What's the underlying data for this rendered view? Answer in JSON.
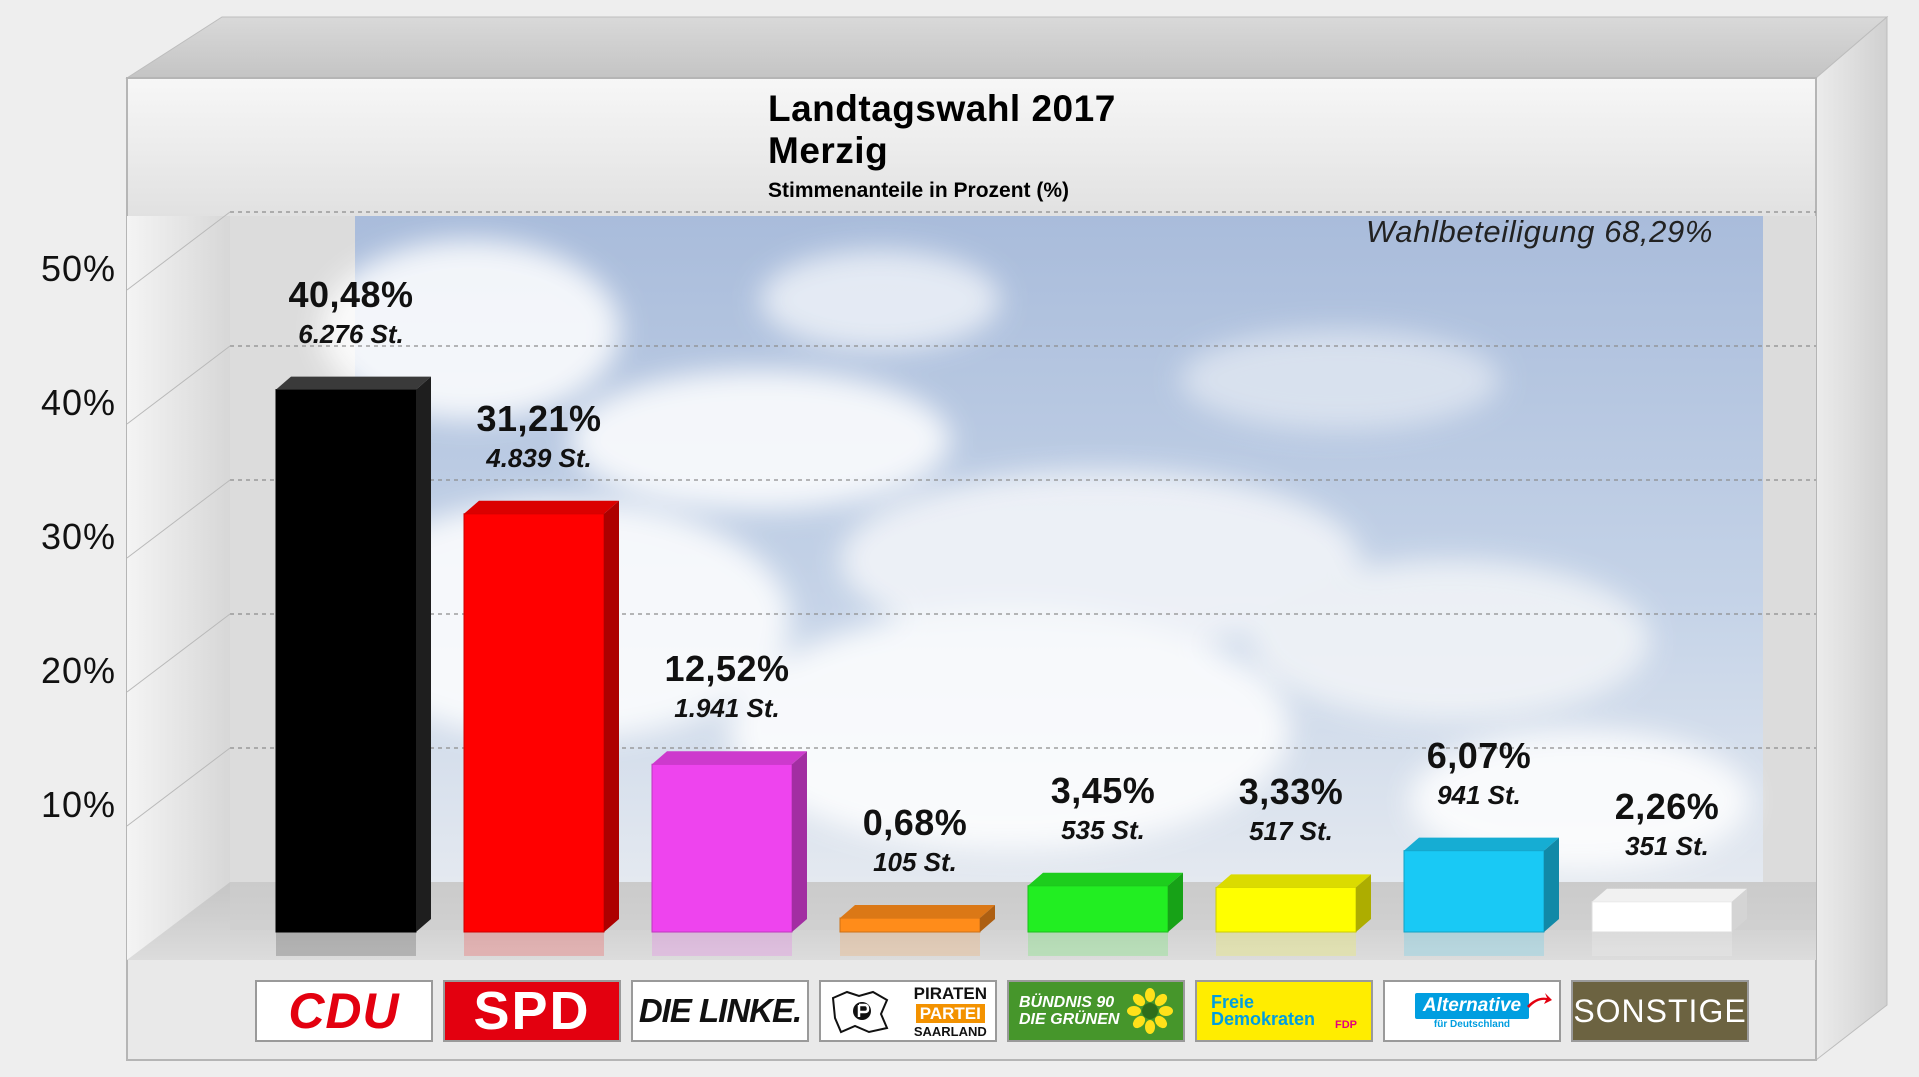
{
  "chart_data": {
    "type": "bar",
    "title": "Landtagswahl 2017",
    "subtitle_line2": "Merzig",
    "subtitle": "Stimmenanteile in Prozent (%)",
    "annotation": "Wahlbeteiligung 68,29%",
    "categories": [
      "CDU",
      "SPD",
      "DIE LINKE.",
      "PIRATEN PARTEI SAARLAND",
      "BÜNDNIS 90 DIE GRÜNEN",
      "Freie Demokraten FDP",
      "Alternative für Deutschland",
      "SONSTIGE"
    ],
    "values": [
      40.48,
      31.21,
      12.52,
      0.68,
      3.45,
      3.33,
      6.07,
      2.26
    ],
    "value_labels": [
      "40,48%",
      "31,21%",
      "12,52%",
      "0,68%",
      "3,45%",
      "3,33%",
      "6,07%",
      "2,26%"
    ],
    "votes": [
      6276,
      4839,
      1941,
      105,
      535,
      517,
      941,
      351
    ],
    "vote_labels": [
      "6.276 St.",
      "4.839 St.",
      "1.941 St.",
      "105 St.",
      "535 St.",
      "517 St.",
      "941 St.",
      "351 St."
    ],
    "colors": [
      "#000000",
      "#ff0000",
      "#ee44ee",
      "#ff8c1a",
      "#22ee22",
      "#ffff00",
      "#19c9f5",
      "#ffffff"
    ],
    "ylim": [
      0,
      50
    ],
    "yticks": [
      "10%",
      "20%",
      "30%",
      "40%",
      "50%"
    ],
    "grid": true,
    "style": "3d"
  },
  "logos": {
    "cdu": "CDU",
    "spd": "SPD",
    "linke": "DIE LINKE.",
    "piraten_1": "PIRATEN",
    "piraten_2": "PARTEI",
    "piraten_3": "SAARLAND",
    "gruene_1": "BÜNDNIS 90",
    "gruene_2": "DIE GRÜNEN",
    "fdp_1": "Freie",
    "fdp_2": "Demokraten",
    "fdp_3": "FDP",
    "afd": "Alternative",
    "afd_2": "für Deutschland",
    "sonstige": "SONSTIGE"
  }
}
